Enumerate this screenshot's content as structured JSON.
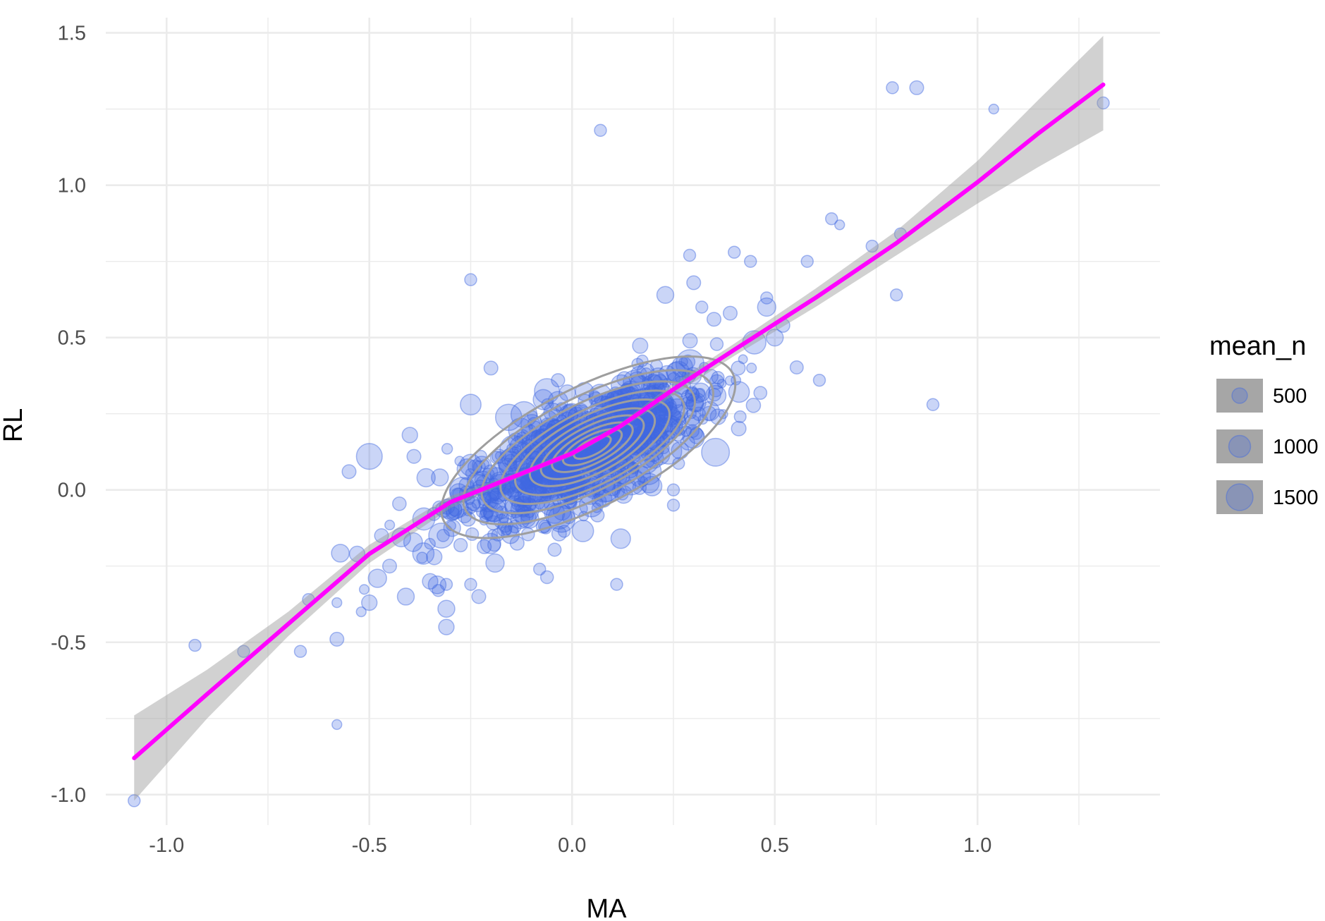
{
  "chart_data": {
    "type": "scatter",
    "xlabel": "MA",
    "ylabel": "RL",
    "xlim": [
      -1.15,
      1.45
    ],
    "ylim": [
      -1.1,
      1.55
    ],
    "x_ticks": [
      -1.0,
      -0.5,
      0.0,
      0.5,
      1.0
    ],
    "x_tick_labels": [
      "-1.0",
      "-0.5",
      "0.0",
      "0.5",
      "1.0"
    ],
    "y_ticks": [
      -1.0,
      -0.5,
      0.0,
      0.5,
      1.0,
      1.5
    ],
    "y_tick_labels": [
      "-1.0",
      "-0.5",
      "0.0",
      "0.5",
      "1.0",
      "1.5"
    ],
    "grid": true,
    "legend": {
      "title": "mean_n",
      "placement": "right",
      "entries": [
        {
          "label": "500",
          "value": 500
        },
        {
          "label": "1000",
          "value": 1000
        },
        {
          "label": "1500",
          "value": 1500
        }
      ]
    },
    "colors": {
      "points": "#4169e1",
      "smooth_line": "#ff00ff",
      "ribbon": "#999999",
      "contour": "#9e9e9e",
      "grid": "#ebebeb"
    },
    "outlier_points": [
      {
        "x": -1.08,
        "y": -1.02,
        "n": 300
      },
      {
        "x": -0.93,
        "y": -0.51,
        "n": 300
      },
      {
        "x": -0.81,
        "y": -0.53,
        "n": 300
      },
      {
        "x": -0.67,
        "y": -0.53,
        "n": 300
      },
      {
        "x": -0.65,
        "y": -0.36,
        "n": 300
      },
      {
        "x": -0.58,
        "y": -0.77,
        "n": 200
      },
      {
        "x": -0.58,
        "y": -0.49,
        "n": 400
      },
      {
        "x": -0.58,
        "y": -0.37,
        "n": 200
      },
      {
        "x": -0.55,
        "y": 0.06,
        "n": 400
      },
      {
        "x": -0.53,
        "y": -0.21,
        "n": 500
      },
      {
        "x": -0.52,
        "y": -0.4,
        "n": 200
      },
      {
        "x": -0.5,
        "y": -0.37,
        "n": 500
      },
      {
        "x": -0.48,
        "y": -0.29,
        "n": 700
      },
      {
        "x": -0.45,
        "y": -0.25,
        "n": 400
      },
      {
        "x": -0.41,
        "y": -0.35,
        "n": 600
      },
      {
        "x": -0.4,
        "y": 0.18,
        "n": 500
      },
      {
        "x": -0.47,
        "y": -0.15,
        "n": 400
      },
      {
        "x": -0.5,
        "y": 0.11,
        "n": 1400
      },
      {
        "x": -0.39,
        "y": 0.11,
        "n": 400
      },
      {
        "x": -0.36,
        "y": 0.04,
        "n": 700
      },
      {
        "x": -0.34,
        "y": -0.22,
        "n": 500
      },
      {
        "x": -0.35,
        "y": -0.3,
        "n": 500
      },
      {
        "x": -0.33,
        "y": -0.33,
        "n": 300
      },
      {
        "x": -0.31,
        "y": -0.31,
        "n": 300
      },
      {
        "x": -0.31,
        "y": -0.39,
        "n": 600
      },
      {
        "x": -0.31,
        "y": -0.45,
        "n": 500
      },
      {
        "x": -0.25,
        "y": 0.69,
        "n": 300
      },
      {
        "x": -0.25,
        "y": -0.31,
        "n": 300
      },
      {
        "x": -0.23,
        "y": -0.35,
        "n": 400
      },
      {
        "x": -0.25,
        "y": 0.28,
        "n": 900
      },
      {
        "x": -0.2,
        "y": 0.4,
        "n": 400
      },
      {
        "x": -0.19,
        "y": -0.24,
        "n": 700
      },
      {
        "x": -0.08,
        "y": -0.26,
        "n": 300
      },
      {
        "x": 0.07,
        "y": 1.18,
        "n": 300
      },
      {
        "x": 0.11,
        "y": -0.31,
        "n": 300
      },
      {
        "x": 0.12,
        "y": -0.16,
        "n": 800
      },
      {
        "x": 0.25,
        "y": -0.05,
        "n": 300
      },
      {
        "x": 0.25,
        "y": 0.0,
        "n": 300
      },
      {
        "x": 0.23,
        "y": 0.64,
        "n": 600
      },
      {
        "x": 0.29,
        "y": 0.77,
        "n": 300
      },
      {
        "x": 0.3,
        "y": 0.68,
        "n": 400
      },
      {
        "x": 0.32,
        "y": 0.6,
        "n": 300
      },
      {
        "x": 0.35,
        "y": 0.56,
        "n": 400
      },
      {
        "x": 0.36,
        "y": 0.24,
        "n": 500
      },
      {
        "x": 0.39,
        "y": 0.58,
        "n": 400
      },
      {
        "x": 0.4,
        "y": 0.78,
        "n": 300
      },
      {
        "x": 0.44,
        "y": 0.75,
        "n": 300
      },
      {
        "x": 0.41,
        "y": 0.4,
        "n": 400
      },
      {
        "x": 0.48,
        "y": 0.63,
        "n": 300
      },
      {
        "x": 0.48,
        "y": 0.6,
        "n": 700
      },
      {
        "x": 0.5,
        "y": 0.5,
        "n": 600
      },
      {
        "x": 0.52,
        "y": 0.54,
        "n": 400
      },
      {
        "x": 0.58,
        "y": 0.75,
        "n": 300
      },
      {
        "x": 0.61,
        "y": 0.36,
        "n": 300
      },
      {
        "x": 0.64,
        "y": 0.89,
        "n": 300
      },
      {
        "x": 0.66,
        "y": 0.87,
        "n": 200
      },
      {
        "x": 0.74,
        "y": 0.8,
        "n": 300
      },
      {
        "x": 0.8,
        "y": 0.64,
        "n": 300
      },
      {
        "x": 0.81,
        "y": 0.84,
        "n": 300
      },
      {
        "x": 0.79,
        "y": 1.32,
        "n": 300
      },
      {
        "x": 0.85,
        "y": 1.32,
        "n": 400
      },
      {
        "x": 0.89,
        "y": 0.28,
        "n": 300
      },
      {
        "x": 1.04,
        "y": 1.25,
        "n": 200
      },
      {
        "x": 1.31,
        "y": 1.27,
        "n": 300
      }
    ],
    "cluster": {
      "center_x": 0.03,
      "center_y": 0.13,
      "spread_x": 0.16,
      "spread_y": 0.13,
      "correlation": 0.72,
      "approx_count": 900
    },
    "smooth_line": {
      "x": [
        -1.08,
        -0.9,
        -0.7,
        -0.5,
        -0.3,
        -0.15,
        0.0,
        0.12,
        0.25,
        0.4,
        0.6,
        0.8,
        1.0,
        1.15,
        1.31
      ],
      "y": [
        -0.88,
        -0.67,
        -0.44,
        -0.21,
        -0.04,
        0.04,
        0.12,
        0.21,
        0.33,
        0.46,
        0.63,
        0.81,
        1.01,
        1.17,
        1.33
      ]
    },
    "ribbon": {
      "x": [
        -1.08,
        -0.9,
        -0.7,
        -0.5,
        -0.3,
        -0.15,
        0.0,
        0.12,
        0.25,
        0.4,
        0.6,
        0.8,
        1.0,
        1.15,
        1.31
      ],
      "lower": [
        -1.02,
        -0.75,
        -0.48,
        -0.24,
        -0.06,
        0.03,
        0.11,
        0.2,
        0.31,
        0.44,
        0.6,
        0.77,
        0.94,
        1.06,
        1.18
      ],
      "upper": [
        -0.74,
        -0.59,
        -0.4,
        -0.18,
        -0.02,
        0.05,
        0.13,
        0.22,
        0.35,
        0.48,
        0.66,
        0.85,
        1.08,
        1.28,
        1.49
      ]
    },
    "contours": [
      {
        "cx": 0.04,
        "cy": 0.14,
        "rx": 0.4,
        "ry": 0.085,
        "angle_deg": 27
      },
      {
        "cx": 0.04,
        "cy": 0.14,
        "rx": 0.34,
        "ry": 0.072,
        "angle_deg": 27
      },
      {
        "cx": 0.04,
        "cy": 0.14,
        "rx": 0.29,
        "ry": 0.062,
        "angle_deg": 27
      },
      {
        "cx": 0.05,
        "cy": 0.14,
        "rx": 0.25,
        "ry": 0.053,
        "angle_deg": 27
      },
      {
        "cx": 0.05,
        "cy": 0.14,
        "rx": 0.21,
        "ry": 0.045,
        "angle_deg": 27
      },
      {
        "cx": 0.05,
        "cy": 0.14,
        "rx": 0.17,
        "ry": 0.037,
        "angle_deg": 27
      },
      {
        "cx": 0.05,
        "cy": 0.14,
        "rx": 0.14,
        "ry": 0.03,
        "angle_deg": 27
      },
      {
        "cx": 0.05,
        "cy": 0.14,
        "rx": 0.11,
        "ry": 0.023,
        "angle_deg": 27
      },
      {
        "cx": 0.05,
        "cy": 0.14,
        "rx": 0.08,
        "ry": 0.017,
        "angle_deg": 27
      },
      {
        "cx": 0.05,
        "cy": 0.14,
        "rx": 0.05,
        "ry": 0.011,
        "angle_deg": 27
      }
    ]
  }
}
